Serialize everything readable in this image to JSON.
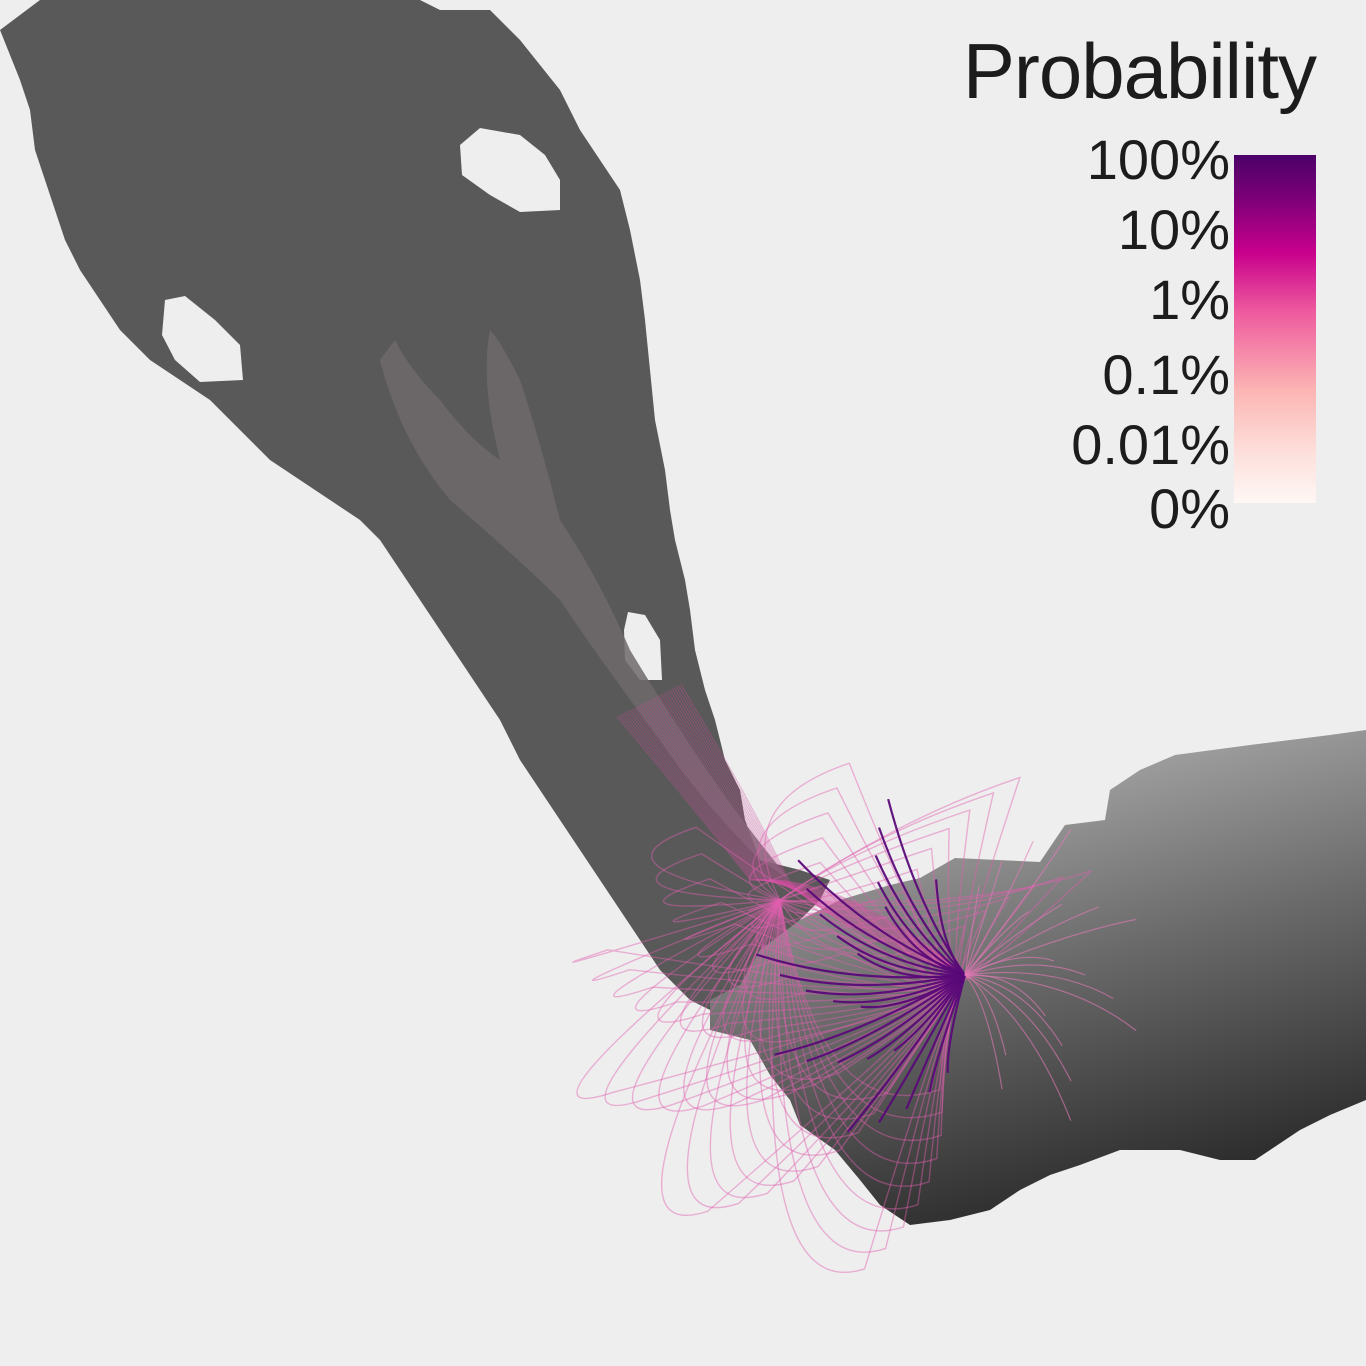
{
  "legend": {
    "title": "Probability",
    "ticks": [
      "100%",
      "10%",
      "1%",
      "0.1%",
      "0.01%",
      "0%"
    ],
    "colors": {
      "high": "#4b0068",
      "mid_high": "#7a0078",
      "mid": "#c8008c",
      "low_mid": "#ee5a9e",
      "low": "#fcc5c0",
      "zero": "#fff7f5"
    }
  },
  "colors": {
    "background": "#eeeeee",
    "upper_region": "#595959",
    "lower_region_light": "#9a9a9a",
    "lower_region_dark": "#2a2a2a",
    "flow": "#e040a8",
    "flow_strong": "#5a0a78"
  }
}
